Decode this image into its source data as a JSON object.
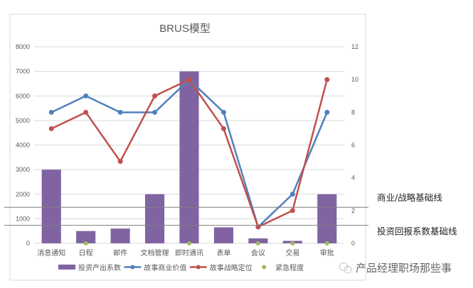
{
  "chart_data": {
    "type": "bar",
    "title": "BRUS模型",
    "xlabel": "",
    "ylabel": "",
    "categories": [
      "消息通知",
      "日程",
      "邮件",
      "文档管理",
      "即时通讯",
      "表单",
      "会议",
      "交易",
      "审批"
    ],
    "series": [
      {
        "name": "投资产出系数",
        "type": "bar",
        "axis": "left",
        "color": "#8064A2",
        "values": [
          3000,
          500,
          600,
          2000,
          7000,
          650,
          200,
          100,
          2000
        ]
      },
      {
        "name": "故事商业价值",
        "type": "line",
        "axis": "right",
        "color": "#4F81BD",
        "values": [
          8,
          9,
          8,
          8,
          10,
          8,
          1,
          3,
          8
        ]
      },
      {
        "name": "故事战略定位",
        "type": "line",
        "axis": "right",
        "color": "#C0504D",
        "values": [
          7,
          8,
          5,
          9,
          10,
          7,
          1,
          2,
          10
        ]
      },
      {
        "name": "紧急程度",
        "type": "scatter",
        "axis": "right",
        "color": "#9BBB59",
        "values": [
          null,
          0,
          null,
          null,
          0,
          null,
          0,
          0,
          0
        ]
      }
    ],
    "ylim": [
      0,
      8000
    ],
    "y2lim": [
      0,
      12
    ],
    "left_ticks": [
      "0",
      "1000",
      "2000",
      "3000",
      "4000",
      "5000",
      "6000",
      "7000",
      "8000"
    ],
    "right_ticks": [
      "0",
      "2",
      "4",
      "6",
      "8",
      "10",
      "12"
    ],
    "grid": true,
    "legend_position": "bottom",
    "reference_lines": [
      {
        "label": "商业/战略基础线",
        "y2_value": 2.2
      },
      {
        "label": "投资回报系数基础线",
        "y2_value": 1.1
      }
    ]
  },
  "watermark": "产品经理职场那些事"
}
